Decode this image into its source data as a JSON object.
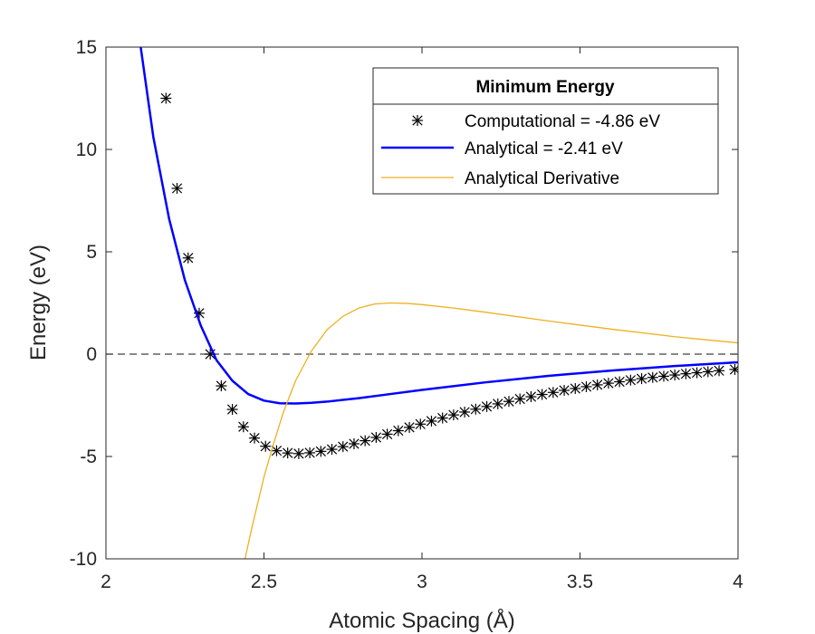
{
  "chart_data": {
    "type": "line",
    "xlabel": "Atomic Spacing (Å)",
    "ylabel": "Energy (eV)",
    "xlim": [
      2,
      4
    ],
    "ylim": [
      -10,
      15
    ],
    "xticks": [
      2,
      2.5,
      3,
      3.5,
      4
    ],
    "xtick_labels": [
      "2",
      "2.5",
      "3",
      "3.5",
      "4"
    ],
    "yticks": [
      -10,
      -5,
      0,
      5,
      10,
      15
    ],
    "ytick_labels": [
      "-10",
      "-5",
      "0",
      "5",
      "10",
      "15"
    ],
    "grid": false,
    "reference_line": {
      "y": 0,
      "style": "dashed",
      "color": "#404040"
    },
    "legend": {
      "title": "Minimum Energy",
      "placement": "top-right",
      "entries": [
        {
          "label": "Computational = -4.86 eV",
          "marker": "asterisk",
          "color": "#000000"
        },
        {
          "label": "Analytical = -2.41 eV",
          "line": "solid",
          "color": "#0000ff"
        },
        {
          "label": "Analytical Derivative",
          "line": "solid",
          "color": "#edb120"
        }
      ]
    },
    "series": [
      {
        "name": "Computational = -4.86 eV",
        "style": "markers",
        "marker": "asterisk",
        "color": "#000000",
        "x": [
          2.19,
          2.225,
          2.26,
          2.295,
          2.33,
          2.365,
          2.4,
          2.435,
          2.47,
          2.505,
          2.54,
          2.575,
          2.61,
          2.645,
          2.68,
          2.715,
          2.75,
          2.785,
          2.82,
          2.855,
          2.89,
          2.925,
          2.96,
          2.995,
          3.03,
          3.065,
          3.1,
          3.135,
          3.17,
          3.205,
          3.24,
          3.275,
          3.31,
          3.345,
          3.38,
          3.415,
          3.45,
          3.485,
          3.52,
          3.555,
          3.59,
          3.625,
          3.66,
          3.695,
          3.73,
          3.765,
          3.8,
          3.835,
          3.87,
          3.905,
          3.94,
          3.99
        ],
        "y": [
          12.5,
          8.1,
          4.7,
          2.0,
          0.0,
          -1.55,
          -2.7,
          -3.55,
          -4.1,
          -4.5,
          -4.72,
          -4.83,
          -4.86,
          -4.82,
          -4.75,
          -4.65,
          -4.52,
          -4.38,
          -4.23,
          -4.07,
          -3.91,
          -3.74,
          -3.58,
          -3.42,
          -3.27,
          -3.12,
          -2.97,
          -2.83,
          -2.69,
          -2.56,
          -2.43,
          -2.31,
          -2.19,
          -2.08,
          -1.97,
          -1.87,
          -1.77,
          -1.68,
          -1.59,
          -1.5,
          -1.42,
          -1.35,
          -1.27,
          -1.2,
          -1.14,
          -1.08,
          -1.02,
          -0.96,
          -0.91,
          -0.86,
          -0.81,
          -0.75
        ]
      },
      {
        "name": "Analytical = -2.41 eV",
        "style": "line",
        "color": "#0000ff",
        "x": [
          2.11,
          2.15,
          2.2,
          2.25,
          2.3,
          2.35,
          2.4,
          2.45,
          2.5,
          2.55,
          2.6,
          2.65,
          2.7,
          2.8,
          2.9,
          3.0,
          3.2,
          3.4,
          3.6,
          3.8,
          4.0
        ],
        "y": [
          15.0,
          10.6,
          6.6,
          3.6,
          1.4,
          -0.3,
          -1.3,
          -1.95,
          -2.27,
          -2.4,
          -2.41,
          -2.38,
          -2.32,
          -2.15,
          -1.95,
          -1.75,
          -1.38,
          -1.06,
          -0.8,
          -0.58,
          -0.4
        ]
      },
      {
        "name": "Analytical Derivative",
        "style": "line",
        "color": "#edb120",
        "x": [
          2.44,
          2.46,
          2.48,
          2.5,
          2.53,
          2.56,
          2.6,
          2.65,
          2.7,
          2.75,
          2.8,
          2.85,
          2.9,
          2.95,
          3.0,
          3.1,
          3.2,
          3.4,
          3.6,
          3.8,
          4.0
        ],
        "y": [
          -10.0,
          -8.6,
          -7.3,
          -6.0,
          -4.4,
          -2.9,
          -1.3,
          0.15,
          1.2,
          1.85,
          2.25,
          2.45,
          2.5,
          2.48,
          2.42,
          2.25,
          2.05,
          1.62,
          1.22,
          0.85,
          0.55
        ]
      }
    ]
  }
}
